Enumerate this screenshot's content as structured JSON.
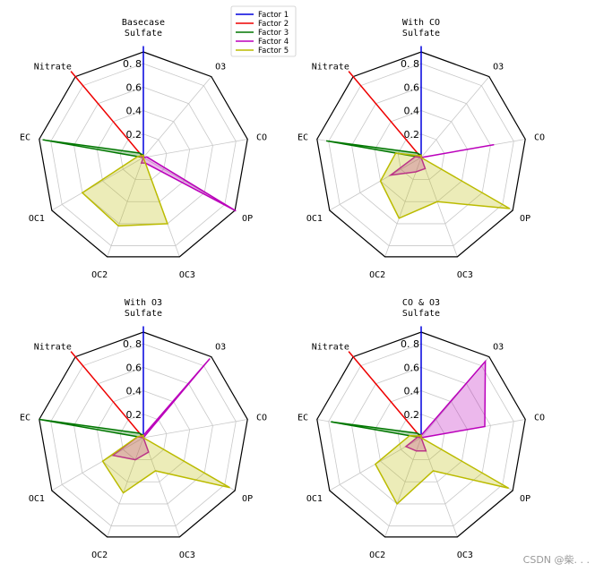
{
  "chart_data": {
    "type": "radar",
    "axes": [
      "Sulfate",
      "O3",
      "CO",
      "OP",
      "OC3",
      "OC2",
      "OC1",
      "EC",
      "Nitrate"
    ],
    "radial_ticks": [
      "0.2",
      "0.4",
      "0.6",
      "0. 8"
    ],
    "radial_tick_values": [
      0.2,
      0.4,
      0.6,
      0.8
    ],
    "rmax": 0.9,
    "legend": [
      {
        "name": "Factor 1",
        "color": "#0000dd"
      },
      {
        "name": "Factor 2",
        "color": "#ee0000"
      },
      {
        "name": "Factor 3",
        "color": "#007700"
      },
      {
        "name": "Factor 4",
        "color": "#bb00bb"
      },
      {
        "name": "Factor 5",
        "color": "#bbbb00"
      }
    ],
    "panels": [
      {
        "title": "Basecase",
        "series": [
          {
            "name": "Factor 1",
            "values": [
              0.95,
              0.0,
              0.0,
              0.0,
              0.0,
              0.0,
              0.0,
              0.0,
              0.0
            ]
          },
          {
            "name": "Factor 2",
            "values": [
              0.0,
              0.0,
              0.0,
              0.0,
              0.0,
              0.0,
              0.0,
              0.0,
              0.96
            ]
          },
          {
            "name": "Factor 3",
            "values": [
              0.02,
              0.0,
              0.0,
              0.0,
              0.0,
              0.0,
              0.0,
              0.87,
              0.05
            ]
          },
          {
            "name": "Factor 4",
            "values": [
              0.02,
              0.0,
              0.03,
              0.91,
              0.05,
              0.05,
              0.0,
              0.03,
              0.0
            ]
          },
          {
            "name": "Factor 5",
            "values": [
              0.02,
              0.0,
              0.0,
              0.0,
              0.6,
              0.62,
              0.6,
              0.05,
              0.02
            ]
          }
        ]
      },
      {
        "title": "With CO",
        "series": [
          {
            "name": "Factor 1",
            "values": [
              0.95,
              0.0,
              0.0,
              0.0,
              0.0,
              0.0,
              0.0,
              0.0,
              0.0
            ]
          },
          {
            "name": "Factor 2",
            "values": [
              0.0,
              0.0,
              0.0,
              0.0,
              0.0,
              0.0,
              0.0,
              0.0,
              0.96
            ]
          },
          {
            "name": "Factor 3",
            "values": [
              0.02,
              0.0,
              0.0,
              0.0,
              0.0,
              0.0,
              0.0,
              0.82,
              0.05
            ]
          },
          {
            "name": "Factor 4",
            "values": [
              0.02,
              0.0,
              0.63,
              0.0,
              0.1,
              0.13,
              0.3,
              0.05,
              0.0
            ]
          },
          {
            "name": "Factor 5",
            "values": [
              0.02,
              0.0,
              0.0,
              0.87,
              0.4,
              0.55,
              0.4,
              0.22,
              0.02
            ]
          }
        ]
      },
      {
        "title": "With O3",
        "series": [
          {
            "name": "Factor 1",
            "values": [
              0.95,
              0.0,
              0.0,
              0.0,
              0.0,
              0.0,
              0.0,
              0.0,
              0.0
            ]
          },
          {
            "name": "Factor 2",
            "values": [
              0.0,
              0.0,
              0.0,
              0.0,
              0.0,
              0.0,
              0.0,
              0.0,
              0.96
            ]
          },
          {
            "name": "Factor 3",
            "values": [
              0.02,
              0.0,
              0.0,
              0.0,
              0.0,
              0.0,
              0.0,
              0.9,
              0.05
            ]
          },
          {
            "name": "Factor 4",
            "values": [
              0.02,
              0.88,
              0.0,
              0.0,
              0.13,
              0.2,
              0.3,
              0.05,
              0.0
            ]
          },
          {
            "name": "Factor 5",
            "values": [
              0.02,
              0.0,
              0.0,
              0.85,
              0.3,
              0.5,
              0.4,
              0.05,
              0.02
            ]
          }
        ]
      },
      {
        "title": "CO & O3",
        "series": [
          {
            "name": "Factor 1",
            "values": [
              0.95,
              0.0,
              0.0,
              0.0,
              0.0,
              0.0,
              0.0,
              0.0,
              0.0
            ]
          },
          {
            "name": "Factor 2",
            "values": [
              0.0,
              0.0,
              0.0,
              0.0,
              0.0,
              0.0,
              0.0,
              0.0,
              0.96
            ]
          },
          {
            "name": "Factor 3",
            "values": [
              0.02,
              0.0,
              0.0,
              0.0,
              0.0,
              0.0,
              0.0,
              0.78,
              0.05
            ]
          },
          {
            "name": "Factor 4",
            "values": [
              0.02,
              0.85,
              0.55,
              0.0,
              0.12,
              0.12,
              0.15,
              0.03,
              0.0
            ]
          },
          {
            "name": "Factor 5",
            "values": [
              0.02,
              0.0,
              0.0,
              0.86,
              0.3,
              0.6,
              0.45,
              0.1,
              0.02
            ]
          }
        ]
      }
    ]
  },
  "watermark": "CSDN @柴. . ."
}
